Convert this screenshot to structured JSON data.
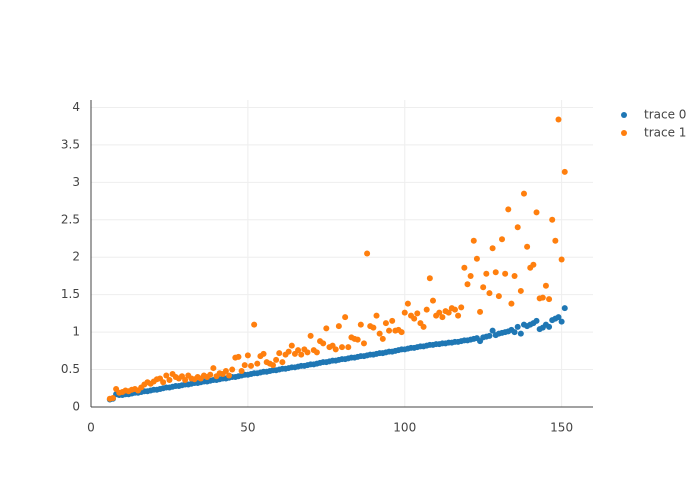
{
  "chart_data": {
    "type": "scatter",
    "x": [
      6,
      7,
      8,
      9,
      10,
      11,
      12,
      13,
      14,
      15,
      16,
      17,
      18,
      19,
      20,
      21,
      22,
      23,
      24,
      25,
      26,
      27,
      28,
      29,
      30,
      31,
      32,
      33,
      34,
      35,
      36,
      37,
      38,
      39,
      40,
      41,
      42,
      43,
      44,
      45,
      46,
      47,
      48,
      49,
      50,
      51,
      52,
      53,
      54,
      55,
      56,
      57,
      58,
      59,
      60,
      61,
      62,
      63,
      64,
      65,
      66,
      67,
      68,
      69,
      70,
      71,
      72,
      73,
      74,
      75,
      76,
      77,
      78,
      79,
      80,
      81,
      82,
      83,
      84,
      85,
      86,
      87,
      88,
      89,
      90,
      91,
      92,
      93,
      94,
      95,
      96,
      97,
      98,
      99,
      100,
      101,
      102,
      103,
      104,
      105,
      106,
      107,
      108,
      109,
      110,
      111,
      112,
      113,
      114,
      115,
      116,
      117,
      118,
      119,
      120,
      121,
      122,
      123,
      124,
      125,
      126,
      127,
      128,
      129,
      130,
      131,
      132,
      133,
      134,
      135,
      136,
      137,
      138,
      139,
      140,
      141,
      142,
      143,
      144,
      145,
      146,
      147,
      148,
      149,
      150,
      151
    ],
    "series": [
      {
        "name": "trace 0",
        "color": "#1f77b4",
        "values": [
          0.1,
          0.11,
          0.17,
          0.16,
          0.16,
          0.17,
          0.17,
          0.18,
          0.19,
          0.19,
          0.2,
          0.21,
          0.21,
          0.22,
          0.23,
          0.23,
          0.24,
          0.25,
          0.26,
          0.26,
          0.27,
          0.28,
          0.28,
          0.29,
          0.3,
          0.3,
          0.31,
          0.32,
          0.32,
          0.33,
          0.34,
          0.34,
          0.35,
          0.36,
          0.36,
          0.37,
          0.38,
          0.38,
          0.39,
          0.4,
          0.4,
          0.41,
          0.42,
          0.43,
          0.43,
          0.44,
          0.45,
          0.45,
          0.46,
          0.47,
          0.47,
          0.48,
          0.49,
          0.49,
          0.5,
          0.51,
          0.51,
          0.52,
          0.53,
          0.53,
          0.54,
          0.55,
          0.55,
          0.56,
          0.57,
          0.57,
          0.58,
          0.59,
          0.6,
          0.6,
          0.61,
          0.62,
          0.62,
          0.63,
          0.64,
          0.64,
          0.65,
          0.66,
          0.66,
          0.67,
          0.68,
          0.68,
          0.69,
          0.7,
          0.7,
          0.71,
          0.72,
          0.72,
          0.73,
          0.74,
          0.74,
          0.75,
          0.76,
          0.77,
          0.77,
          0.78,
          0.79,
          0.79,
          0.8,
          0.81,
          0.81,
          0.82,
          0.83,
          0.83,
          0.84,
          0.84,
          0.85,
          0.85,
          0.86,
          0.86,
          0.87,
          0.87,
          0.88,
          0.89,
          0.89,
          0.9,
          0.91,
          0.92,
          0.88,
          0.93,
          0.94,
          0.95,
          1.02,
          0.96,
          0.98,
          0.99,
          1.0,
          1.01,
          1.03,
          1.0,
          1.07,
          0.98,
          1.1,
          1.08,
          1.1,
          1.12,
          1.15,
          1.04,
          1.06,
          1.1,
          1.07,
          1.16,
          1.18,
          1.2,
          1.14,
          1.32
        ]
      },
      {
        "name": "trace 1",
        "color": "#ff7f0e",
        "values": [
          0.11,
          0.12,
          0.24,
          0.19,
          0.2,
          0.22,
          0.21,
          0.23,
          0.24,
          0.22,
          0.26,
          0.3,
          0.33,
          0.31,
          0.34,
          0.37,
          0.38,
          0.33,
          0.42,
          0.36,
          0.44,
          0.4,
          0.38,
          0.41,
          0.36,
          0.42,
          0.38,
          0.37,
          0.4,
          0.38,
          0.42,
          0.4,
          0.43,
          0.52,
          0.41,
          0.45,
          0.44,
          0.48,
          0.42,
          0.5,
          0.66,
          0.67,
          0.48,
          0.56,
          0.69,
          0.55,
          1.1,
          0.58,
          0.68,
          0.71,
          0.6,
          0.58,
          0.56,
          0.63,
          0.72,
          0.6,
          0.7,
          0.74,
          0.82,
          0.71,
          0.76,
          0.7,
          0.77,
          0.73,
          0.95,
          0.76,
          0.73,
          0.88,
          0.85,
          1.05,
          0.8,
          0.82,
          0.77,
          1.08,
          0.8,
          1.2,
          0.8,
          0.93,
          0.91,
          0.9,
          1.1,
          0.85,
          2.05,
          1.08,
          1.06,
          1.22,
          0.98,
          0.91,
          1.12,
          1.02,
          1.15,
          1.02,
          1.03,
          1.0,
          1.26,
          1.38,
          1.22,
          1.18,
          1.25,
          1.12,
          1.07,
          1.3,
          1.72,
          1.42,
          1.22,
          1.26,
          1.2,
          1.28,
          1.26,
          1.32,
          1.3,
          1.22,
          1.33,
          1.86,
          1.64,
          1.75,
          2.22,
          1.98,
          1.27,
          1.6,
          1.78,
          1.52,
          2.12,
          1.8,
          1.48,
          2.24,
          1.78,
          2.64,
          1.38,
          1.75,
          2.4,
          1.55,
          2.85,
          2.14,
          1.86,
          1.9,
          2.6,
          1.45,
          1.46,
          1.62,
          1.44,
          2.5,
          2.22,
          3.84,
          1.97,
          3.14
        ]
      }
    ],
    "xlim": [
      0,
      160
    ],
    "xticks": [
      0,
      50,
      100,
      150
    ],
    "ylim": [
      0,
      4.1
    ],
    "yticks": [
      0,
      0.5,
      1,
      1.5,
      2,
      2.5,
      3,
      3.5,
      4
    ],
    "grid": true,
    "legend": "right"
  }
}
